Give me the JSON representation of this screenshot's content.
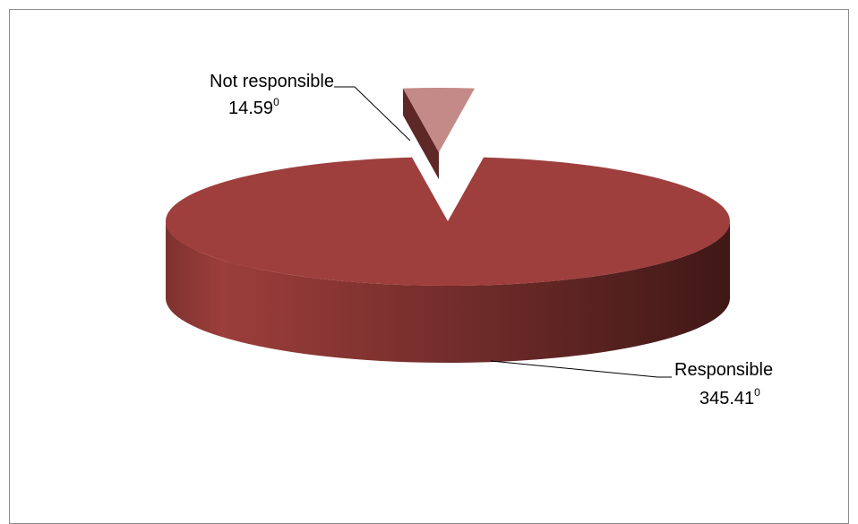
{
  "chart_data": {
    "type": "pie",
    "style": "3d-exploded",
    "title": "",
    "unit": "degrees",
    "slices": [
      {
        "name": "Responsible",
        "value": 345.41,
        "value_label": "345.41",
        "color": "#9e3f3d",
        "exploded": false
      },
      {
        "name": "Not responsible",
        "value": 14.59,
        "value_label": "14.59",
        "color": "#c48a87",
        "exploded": true
      }
    ],
    "degree_marker": "0",
    "legend": "none"
  }
}
